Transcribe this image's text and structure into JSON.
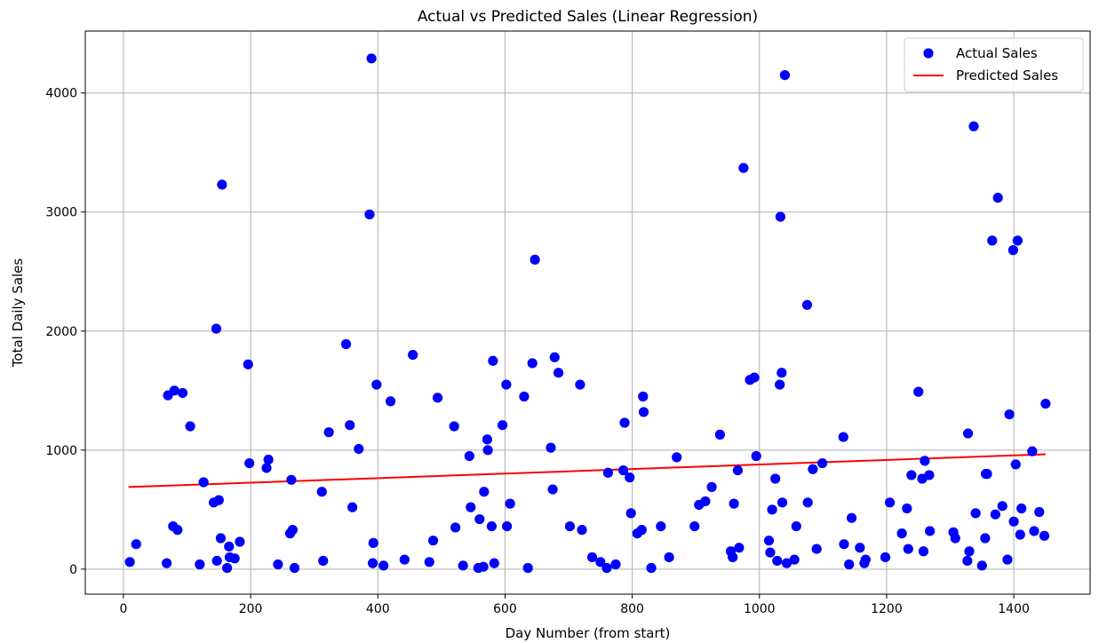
{
  "chart_data": {
    "type": "scatter",
    "title": "Actual vs Predicted Sales (Linear Regression)",
    "xlabel": "Day Number (from start)",
    "ylabel": "Total Daily Sales",
    "xlim": [
      -60,
      1520
    ],
    "ylim": [
      -210,
      4520
    ],
    "xticks": [
      0,
      200,
      400,
      600,
      800,
      1000,
      1200,
      1400
    ],
    "yticks": [
      0,
      1000,
      2000,
      3000,
      4000
    ],
    "grid": true,
    "legend_position": "top-right",
    "legend": [
      "Actual Sales",
      "Predicted Sales"
    ],
    "series": [
      {
        "name": "Actual Sales",
        "kind": "scatter",
        "color": "#0000ff",
        "points": [
          [
            10,
            60
          ],
          [
            20,
            210
          ],
          [
            68,
            50
          ],
          [
            70,
            1460
          ],
          [
            78,
            360
          ],
          [
            80,
            1500
          ],
          [
            85,
            330
          ],
          [
            93,
            1480
          ],
          [
            105,
            1200
          ],
          [
            120,
            40
          ],
          [
            126,
            730
          ],
          [
            142,
            560
          ],
          [
            146,
            2020
          ],
          [
            147,
            70
          ],
          [
            150,
            580
          ],
          [
            153,
            260
          ],
          [
            155,
            3230
          ],
          [
            163,
            10
          ],
          [
            166,
            190
          ],
          [
            167,
            100
          ],
          [
            175,
            90
          ],
          [
            183,
            230
          ],
          [
            196,
            1720
          ],
          [
            198,
            890
          ],
          [
            225,
            850
          ],
          [
            228,
            920
          ],
          [
            243,
            40
          ],
          [
            262,
            300
          ],
          [
            264,
            750
          ],
          [
            266,
            330
          ],
          [
            269,
            10
          ],
          [
            312,
            650
          ],
          [
            314,
            70
          ],
          [
            323,
            1150
          ],
          [
            350,
            1890
          ],
          [
            356,
            1210
          ],
          [
            360,
            520
          ],
          [
            370,
            1010
          ],
          [
            387,
            2980
          ],
          [
            390,
            4290
          ],
          [
            392,
            50
          ],
          [
            393,
            220
          ],
          [
            398,
            1550
          ],
          [
            409,
            30
          ],
          [
            420,
            1410
          ],
          [
            442,
            80
          ],
          [
            455,
            1800
          ],
          [
            481,
            60
          ],
          [
            487,
            240
          ],
          [
            494,
            1440
          ],
          [
            520,
            1200
          ],
          [
            522,
            350
          ],
          [
            534,
            30
          ],
          [
            544,
            950
          ],
          [
            546,
            520
          ],
          [
            558,
            10
          ],
          [
            560,
            420
          ],
          [
            566,
            20
          ],
          [
            567,
            650
          ],
          [
            572,
            1090
          ],
          [
            573,
            1000
          ],
          [
            579,
            360
          ],
          [
            581,
            1750
          ],
          [
            583,
            50
          ],
          [
            596,
            1210
          ],
          [
            602,
            1550
          ],
          [
            603,
            360
          ],
          [
            608,
            550
          ],
          [
            630,
            1450
          ],
          [
            636,
            10
          ],
          [
            643,
            1730
          ],
          [
            647,
            2600
          ],
          [
            672,
            1020
          ],
          [
            675,
            670
          ],
          [
            678,
            1780
          ],
          [
            684,
            1650
          ],
          [
            702,
            360
          ],
          [
            718,
            1550
          ],
          [
            721,
            330
          ],
          [
            737,
            100
          ],
          [
            750,
            60
          ],
          [
            760,
            10
          ],
          [
            762,
            810
          ],
          [
            774,
            40
          ],
          [
            786,
            830
          ],
          [
            788,
            1230
          ],
          [
            796,
            770
          ],
          [
            798,
            470
          ],
          [
            808,
            300
          ],
          [
            815,
            330
          ],
          [
            817,
            1450
          ],
          [
            818,
            1320
          ],
          [
            830,
            10
          ],
          [
            845,
            360
          ],
          [
            858,
            100
          ],
          [
            870,
            940
          ],
          [
            898,
            360
          ],
          [
            905,
            540
          ],
          [
            915,
            570
          ],
          [
            925,
            690
          ],
          [
            938,
            1130
          ],
          [
            955,
            150
          ],
          [
            958,
            100
          ],
          [
            960,
            550
          ],
          [
            966,
            830
          ],
          [
            968,
            180
          ],
          [
            975,
            3370
          ],
          [
            985,
            1590
          ],
          [
            992,
            1610
          ],
          [
            995,
            950
          ],
          [
            1015,
            240
          ],
          [
            1017,
            140
          ],
          [
            1020,
            500
          ],
          [
            1025,
            760
          ],
          [
            1028,
            70
          ],
          [
            1032,
            1550
          ],
          [
            1033,
            2960
          ],
          [
            1035,
            1650
          ],
          [
            1036,
            560
          ],
          [
            1040,
            4150
          ],
          [
            1043,
            50
          ],
          [
            1055,
            80
          ],
          [
            1058,
            360
          ],
          [
            1075,
            2220
          ],
          [
            1076,
            560
          ],
          [
            1084,
            840
          ],
          [
            1090,
            170
          ],
          [
            1099,
            890
          ],
          [
            1132,
            1110
          ],
          [
            1133,
            210
          ],
          [
            1141,
            40
          ],
          [
            1145,
            430
          ],
          [
            1158,
            180
          ],
          [
            1165,
            50
          ],
          [
            1167,
            80
          ],
          [
            1198,
            100
          ],
          [
            1205,
            560
          ],
          [
            1224,
            300
          ],
          [
            1232,
            510
          ],
          [
            1234,
            170
          ],
          [
            1239,
            790
          ],
          [
            1250,
            1490
          ],
          [
            1256,
            760
          ],
          [
            1258,
            150
          ],
          [
            1260,
            910
          ],
          [
            1267,
            790
          ],
          [
            1268,
            320
          ],
          [
            1305,
            310
          ],
          [
            1308,
            260
          ],
          [
            1327,
            70
          ],
          [
            1328,
            1140
          ],
          [
            1330,
            150
          ],
          [
            1337,
            3720
          ],
          [
            1340,
            470
          ],
          [
            1350,
            30
          ],
          [
            1355,
            260
          ],
          [
            1356,
            800
          ],
          [
            1358,
            800
          ],
          [
            1366,
            2760
          ],
          [
            1371,
            460
          ],
          [
            1375,
            3120
          ],
          [
            1382,
            530
          ],
          [
            1390,
            80
          ],
          [
            1393,
            1300
          ],
          [
            1399,
            2680
          ],
          [
            1400,
            400
          ],
          [
            1403,
            880
          ],
          [
            1406,
            2760
          ],
          [
            1410,
            290
          ],
          [
            1412,
            510
          ],
          [
            1429,
            990
          ],
          [
            1432,
            320
          ],
          [
            1440,
            480
          ],
          [
            1448,
            280
          ],
          [
            1450,
            1390
          ]
        ]
      },
      {
        "name": "Predicted Sales",
        "kind": "line",
        "color": "#ff0000",
        "points": [
          [
            8,
            690
          ],
          [
            1450,
            965
          ]
        ]
      }
    ]
  }
}
